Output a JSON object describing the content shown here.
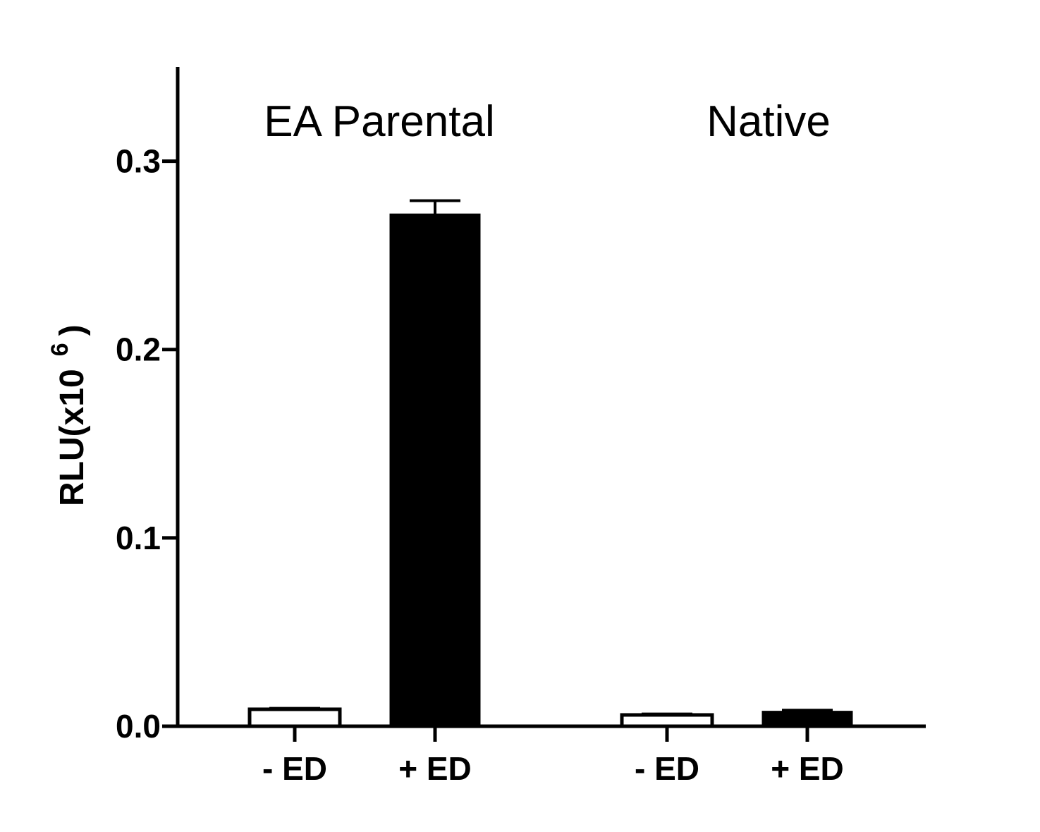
{
  "chart_data": {
    "type": "bar",
    "ylabel": "RLU(x10",
    "ylabel_superscript": "6",
    "ylabel_close": ")",
    "ylim": [
      0,
      0.35
    ],
    "yticks": [
      0.0,
      0.1,
      0.2,
      0.3
    ],
    "ytick_labels": [
      "0.0",
      "0.1",
      "0.2",
      "0.3"
    ],
    "grid": false,
    "groups": [
      {
        "label": "EA Parental",
        "bars": [
          {
            "category": "- ED",
            "value": 0.009,
            "error": 0.0005,
            "fill": "#ffffff"
          },
          {
            "category": "+ ED",
            "value": 0.272,
            "error": 0.007,
            "fill": "#000000"
          }
        ]
      },
      {
        "label": "Native",
        "bars": [
          {
            "category": "- ED",
            "value": 0.006,
            "error": 0.0005,
            "fill": "#ffffff"
          },
          {
            "category": "+ ED",
            "value": 0.008,
            "error": 0.0005,
            "fill": "#000000"
          }
        ]
      }
    ]
  }
}
